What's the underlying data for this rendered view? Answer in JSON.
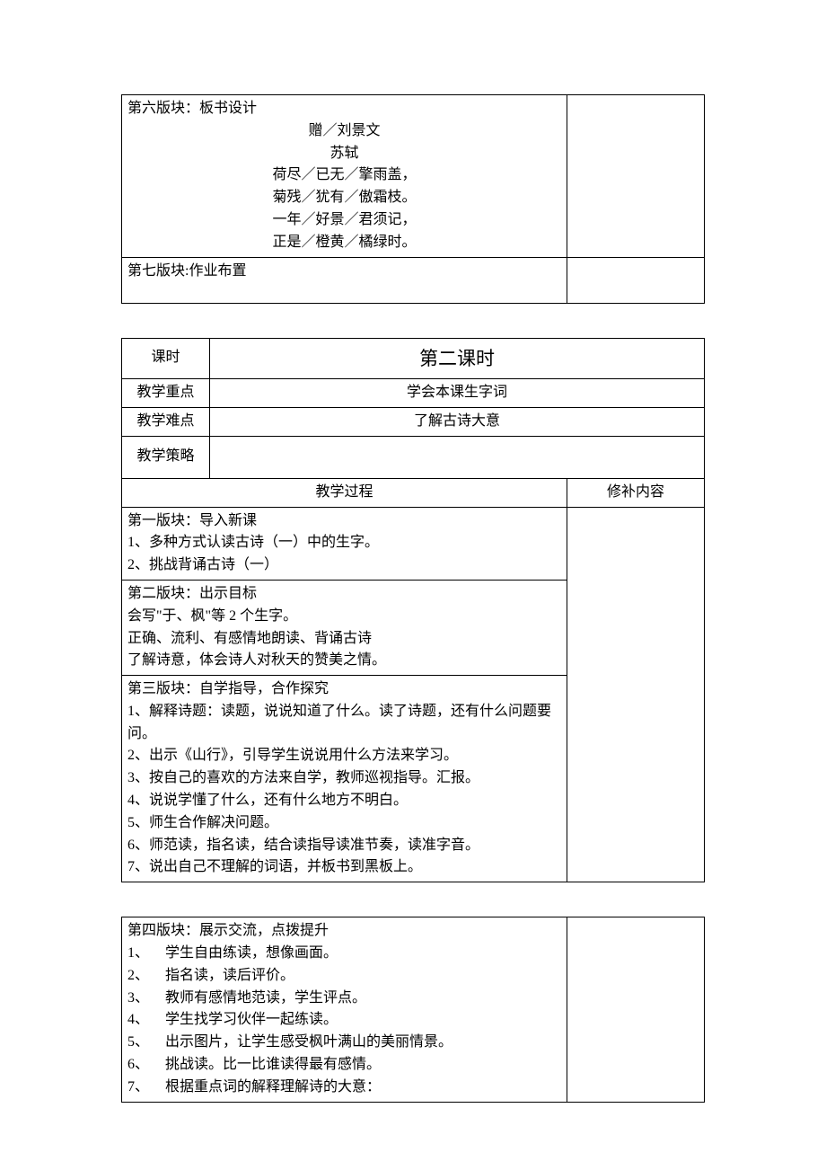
{
  "colors": {
    "text": "#000000",
    "background": "#ffffff",
    "border": "#000000"
  },
  "table1": {
    "block6": {
      "title": "第六版块：板书设计",
      "poem_title": "赠／刘景文",
      "author": "苏轼",
      "lines": [
        "荷尽／已无／擎雨盖，",
        "菊残／犹有／傲霜枝。",
        "一年／好景／君须记，",
        "正是／橙黄／橘绿时。"
      ]
    },
    "block7": {
      "title": "第七版块:作业布置"
    }
  },
  "table2": {
    "header": {
      "period_label": "课时",
      "period_value": "第二课时",
      "focus_label": "教学重点",
      "focus_value": "学会本课生字词",
      "difficulty_label": "教学难点",
      "difficulty_value": "了解古诗大意",
      "strategy_label": "教学策略",
      "process_label": "教学过程",
      "supplement_label": "修补内容"
    },
    "block1": {
      "title": "第一版块：导入新课",
      "lines": [
        "1、多种方式认读古诗（一）中的生字。",
        "2、挑战背诵古诗（一）"
      ]
    },
    "block2": {
      "title": "第二版块：出示目标",
      "lines": [
        "会写\"于、枫\"等 2 个生字。",
        "正确、流利、有感情地朗读、背诵古诗",
        "了解诗意，体会诗人对秋天的赞美之情。"
      ]
    },
    "block3": {
      "title": "第三版块：自学指导，合作探究",
      "lines": [
        "1、解释诗题：读题，说说知道了什么。读了诗题，还有什么问题要问。",
        "2、出示《山行》，引导学生说说用什么方法来学习。",
        "3、按自己的喜欢的方法来自学，教师巡视指导。汇报。",
        "4、说说学懂了什么，还有什么地方不明白。",
        "5、师生合作解决问题。",
        "6、师范读，指名读，结合读指导读准节奏，读准字音。",
        "7、说出自己不理解的词语，并板书到黑板上。"
      ]
    }
  },
  "table3": {
    "block4": {
      "title": "第四版块：展示交流，点拨提升",
      "items": [
        {
          "n": "1、",
          "t": "学生自由练读，想像画面。"
        },
        {
          "n": "2、",
          "t": "指名读，读后评价。"
        },
        {
          "n": "3、",
          "t": "教师有感情地范读，学生评点。"
        },
        {
          "n": "4、",
          "t": "学生找学习伙伴一起练读。"
        },
        {
          "n": "5、",
          "t": "出示图片，让学生感受枫叶满山的美丽情景。"
        },
        {
          "n": "6、",
          "t": "挑战读。比一比谁读得最有感情。"
        },
        {
          "n": "7、",
          "t": "根据重点词的解释理解诗的大意："
        }
      ]
    }
  }
}
